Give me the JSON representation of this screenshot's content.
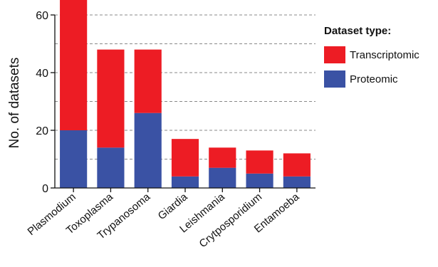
{
  "chart_data": {
    "type": "bar",
    "stacked": true,
    "categories": [
      "Plasmodium",
      "Toxoplasma",
      "Trypanosoma",
      "Giardia",
      "Leishmania",
      "Crytposporidium",
      "Entamoeba"
    ],
    "series": [
      {
        "name": "Proteomic",
        "color": "#3a52a4",
        "values": [
          20,
          14,
          26,
          4,
          7,
          5,
          4
        ]
      },
      {
        "name": "Transcriptomic",
        "color": "#ed1c24",
        "values": [
          50,
          34,
          22,
          13,
          7,
          8,
          8
        ]
      }
    ],
    "ylabel": "No. of datasets",
    "yticks": [
      0,
      20,
      40,
      60
    ],
    "ylim": [
      0,
      60
    ],
    "grid": "dashed horizontal at 10-unit steps",
    "legend": {
      "title": "Dataset type:",
      "position": "right",
      "entries": [
        "Transcriptomic",
        "Proteomic"
      ]
    }
  }
}
